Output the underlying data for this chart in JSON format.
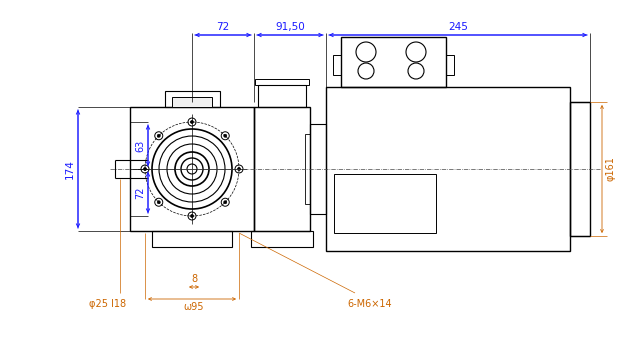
{
  "bg_color": "#ffffff",
  "line_color": "#000000",
  "dim_color": "#1a1aff",
  "dim_color2": "#cc6600",
  "dimensions": {
    "dim_72": "72",
    "dim_91_50": "91,50",
    "dim_245": "245",
    "dim_174": "174",
    "dim_63": "63",
    "dim_72b": "72",
    "dim_8": "8",
    "dim_phi25_118": "φ25 l18",
    "dim_phi95": "ω95",
    "dim_6M6x14": "6-M6×14",
    "dim_phi161": "φ161"
  },
  "figsize": [
    6.22,
    3.37
  ],
  "dpi": 100
}
